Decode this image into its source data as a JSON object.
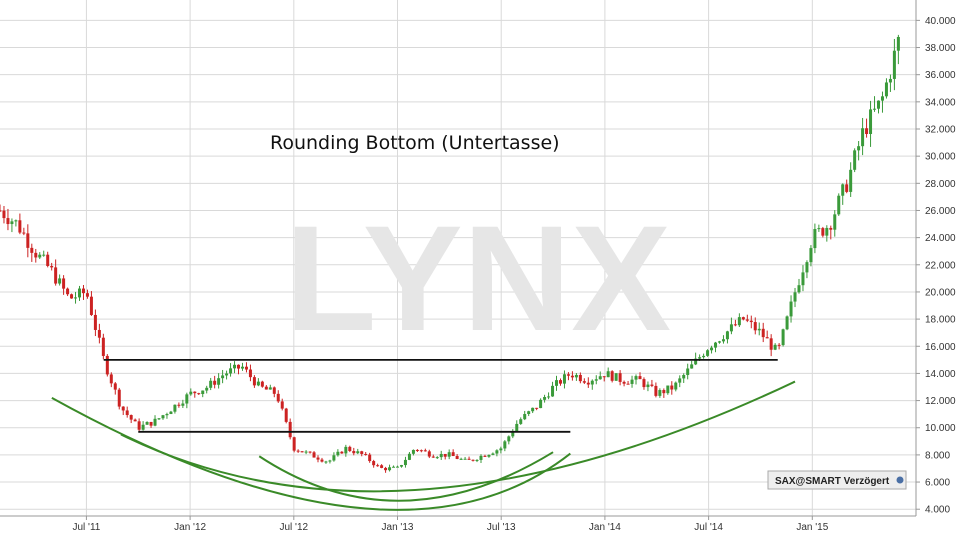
{
  "chart_data": {
    "type": "candlestick",
    "title": "Rounding Bottom (Untertasse)",
    "watermark": "LYNX",
    "source_badge": "SAX@SMART Verzögert",
    "x_ticks": [
      "Jul '11",
      "Jan '12",
      "Jul '12",
      "Jan '13",
      "Jul '13",
      "Jan '14",
      "Jul '14",
      "Jan '15"
    ],
    "y_ticks": [
      "4.000",
      "6.000",
      "8.000",
      "10.000",
      "12.000",
      "14.000",
      "16.000",
      "18.000",
      "20.000",
      "22.000",
      "24.000",
      "26.000",
      "28.000",
      "30.000",
      "32.000",
      "34.000",
      "36.000",
      "38.000",
      "40.000"
    ],
    "ylim": [
      3.5,
      41.5
    ],
    "x_range": [
      "2011-02",
      "2015-07"
    ],
    "grid": true,
    "series_close_points": [
      [
        "2011-02",
        26.0
      ],
      [
        "2011-03",
        25.0
      ],
      [
        "2011-04",
        23.0
      ],
      [
        "2011-05",
        21.5
      ],
      [
        "2011-06",
        19.5
      ],
      [
        "2011-07",
        20.0
      ],
      [
        "2011-08",
        15.0
      ],
      [
        "2011-09",
        11.5
      ],
      [
        "2011-10",
        10.0
      ],
      [
        "2011-11",
        10.5
      ],
      [
        "2011-12",
        11.5
      ],
      [
        "2012-01",
        12.5
      ],
      [
        "2012-02",
        13.0
      ],
      [
        "2012-03",
        14.0
      ],
      [
        "2012-04",
        14.5
      ],
      [
        "2012-05",
        13.0
      ],
      [
        "2012-06",
        12.5
      ],
      [
        "2012-07",
        8.5
      ],
      [
        "2012-08",
        8.0
      ],
      [
        "2012-09",
        7.5
      ],
      [
        "2012-10",
        8.5
      ],
      [
        "2012-11",
        8.0
      ],
      [
        "2012-12",
        7.0
      ],
      [
        "2013-01",
        7.0
      ],
      [
        "2013-02",
        8.5
      ],
      [
        "2013-03",
        8.0
      ],
      [
        "2013-04",
        8.0
      ],
      [
        "2013-05",
        7.5
      ],
      [
        "2013-06",
        8.0
      ],
      [
        "2013-07",
        8.5
      ],
      [
        "2013-08",
        10.5
      ],
      [
        "2013-09",
        11.5
      ],
      [
        "2013-10",
        13.0
      ],
      [
        "2013-11",
        14.0
      ],
      [
        "2013-12",
        13.5
      ],
      [
        "2014-01",
        14.0
      ],
      [
        "2014-02",
        13.5
      ],
      [
        "2014-03",
        13.5
      ],
      [
        "2014-04",
        12.5
      ],
      [
        "2014-05",
        13.0
      ],
      [
        "2014-06",
        14.5
      ],
      [
        "2014-07",
        16.0
      ],
      [
        "2014-08",
        17.0
      ],
      [
        "2014-09",
        18.0
      ],
      [
        "2014-10",
        17.0
      ],
      [
        "2014-11",
        15.5
      ],
      [
        "2014-12",
        20.0
      ],
      [
        "2015-01",
        24.0
      ],
      [
        "2015-02",
        25.0
      ],
      [
        "2015-03",
        28.0
      ],
      [
        "2015-04",
        32.0
      ],
      [
        "2015-05",
        34.0
      ],
      [
        "2015-06",
        38.5
      ]
    ],
    "annotations": {
      "resistance_line": {
        "value": 15.0,
        "from": "2011-08",
        "to": "2014-11"
      },
      "support_line": {
        "value": 9.7,
        "from": "2011-10",
        "to": "2013-11"
      },
      "rounding_arcs": 3
    },
    "colors": {
      "up": "#3a9a3a",
      "down": "#cc2222",
      "arc": "#3a8a28",
      "line": "#111111",
      "grid": "#d9d9d9"
    }
  }
}
